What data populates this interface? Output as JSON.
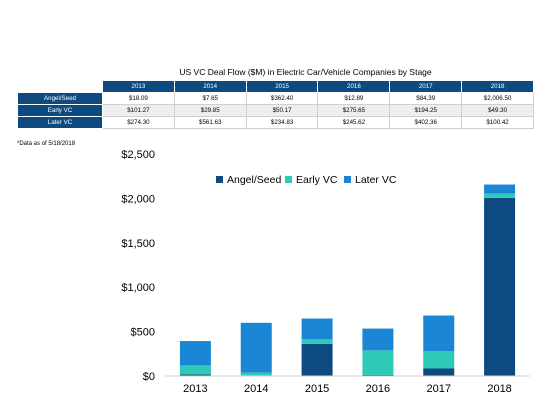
{
  "table": {
    "title": "US VC Deal Flow ($M) in Electric Car/Vehicle Companies by Stage",
    "years": [
      "2013",
      "2014",
      "2015",
      "2016",
      "2017",
      "2018"
    ],
    "rows": [
      {
        "label": "Angel/Seed",
        "cells": [
          "$18.09",
          "$7.65",
          "$362.40",
          "$12.89",
          "$84.39",
          "$2,006.50"
        ]
      },
      {
        "label": "Early VC",
        "cells": [
          "$101.27",
          "$29.85",
          "$50.17",
          "$275.65",
          "$194.25",
          "$49.30"
        ]
      },
      {
        "label": "Later VC",
        "cells": [
          "$274.30",
          "$561.63",
          "$234.83",
          "$245.62",
          "$402.36",
          "$100.42"
        ]
      }
    ]
  },
  "footnote": "*Data as of 5/18/2018",
  "chart_data": {
    "type": "bar",
    "stacked": true,
    "categories": [
      "2013",
      "2014",
      "2015",
      "2016",
      "2017",
      "2018"
    ],
    "series": [
      {
        "name": "Angel/Seed",
        "color": "#0d4a80",
        "values": [
          18.09,
          7.65,
          362.4,
          12.89,
          84.39,
          2006.5
        ]
      },
      {
        "name": "Early VC",
        "color": "#2ec9b7",
        "values": [
          101.27,
          29.85,
          50.17,
          275.65,
          194.25,
          49.3
        ]
      },
      {
        "name": "Later VC",
        "color": "#1b86d6",
        "values": [
          274.3,
          561.63,
          234.83,
          245.62,
          402.36,
          100.42
        ]
      }
    ],
    "ylim": [
      0,
      2500
    ],
    "yticks": [
      0,
      500,
      1000,
      1500,
      2000,
      2500
    ],
    "ytick_labels": [
      "$0",
      "$500",
      "$1,000",
      "$1,500",
      "$2,000",
      "$2,500"
    ],
    "legend": "top",
    "grid": false,
    "xlabel": "",
    "ylabel": "",
    "title": ""
  }
}
